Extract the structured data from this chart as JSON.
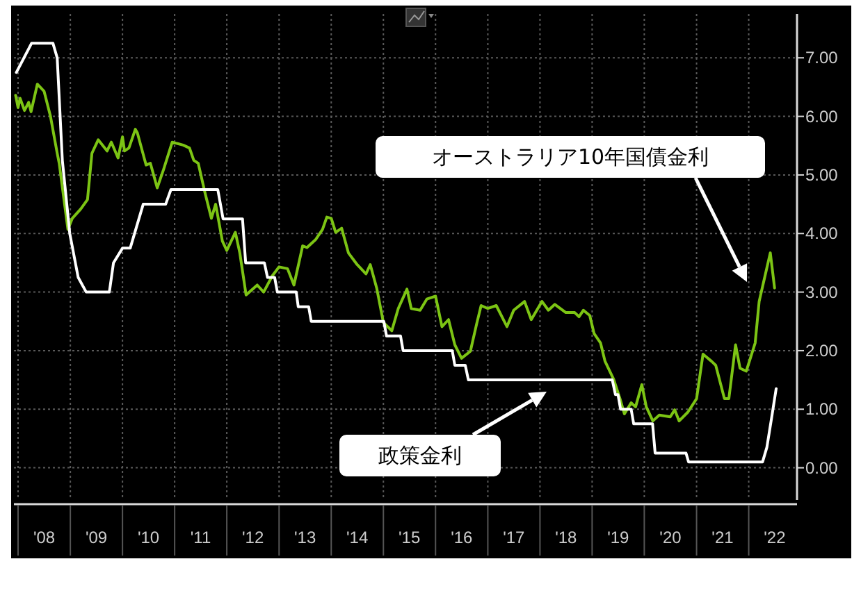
{
  "chart_data": {
    "type": "line",
    "xlim": [
      "2007-12-03",
      "2022-12-05"
    ],
    "ylim": [
      -0.55,
      7.75
    ],
    "xticks": [
      {
        "value": "2008-01-01",
        "label": null
      },
      {
        "value": "2008-07-02",
        "label": "'08"
      },
      {
        "value": "2009-01-01",
        "label": null
      },
      {
        "value": "2009-07-02",
        "label": "'09"
      },
      {
        "value": "2010-01-01",
        "label": null
      },
      {
        "value": "2010-07-02",
        "label": "'10"
      },
      {
        "value": "2011-01-01",
        "label": null
      },
      {
        "value": "2011-07-02",
        "label": "'11"
      },
      {
        "value": "2012-01-01",
        "label": null
      },
      {
        "value": "2012-07-02",
        "label": "'12"
      },
      {
        "value": "2013-01-01",
        "label": null
      },
      {
        "value": "2013-07-02",
        "label": "'13"
      },
      {
        "value": "2014-01-01",
        "label": null
      },
      {
        "value": "2014-07-02",
        "label": "'14"
      },
      {
        "value": "2015-01-01",
        "label": null
      },
      {
        "value": "2015-07-02",
        "label": "'15"
      },
      {
        "value": "2016-01-01",
        "label": null
      },
      {
        "value": "2016-07-02",
        "label": "'16"
      },
      {
        "value": "2017-01-01",
        "label": null
      },
      {
        "value": "2017-07-02",
        "label": "'17"
      },
      {
        "value": "2018-01-01",
        "label": null
      },
      {
        "value": "2018-07-02",
        "label": "'18"
      },
      {
        "value": "2019-01-01",
        "label": null
      },
      {
        "value": "2019-07-02",
        "label": "'19"
      },
      {
        "value": "2020-01-01",
        "label": null
      },
      {
        "value": "2020-07-02",
        "label": "'20"
      },
      {
        "value": "2021-01-01",
        "label": null
      },
      {
        "value": "2021-07-02",
        "label": "'21"
      },
      {
        "value": "2022-01-01",
        "label": null
      },
      {
        "value": "2022-07-02",
        "label": "'22"
      }
    ],
    "yticks": [
      {
        "value": 0,
        "label": "0.00"
      },
      {
        "value": 1,
        "label": "1.00"
      },
      {
        "value": 2,
        "label": "2.00"
      },
      {
        "value": 3,
        "label": "3.00"
      },
      {
        "value": 4,
        "label": "4.00"
      },
      {
        "value": 5,
        "label": "5.00"
      },
      {
        "value": 6,
        "label": "6.00"
      },
      {
        "value": 7,
        "label": "7.00"
      }
    ],
    "grid": true,
    "line_style": "solid",
    "marker": "none",
    "annotations": [
      "オーストラリア10年国債金利",
      "政策金利"
    ],
    "series": [
      {
        "color": "#7cc414",
        "x": [
          "2007-12-15",
          "2008-01-01",
          "2008-01-15",
          "2008-02-15",
          "2008-03-15",
          "2008-04-01",
          "2008-05-15",
          "2008-07-01",
          "2008-08-15",
          "2008-10-01",
          "2008-10-15",
          "2008-12-15",
          "2009-01-15",
          "2009-03-15",
          "2009-05-01",
          "2009-06-01",
          "2009-07-15",
          "2009-09-15",
          "2009-10-15",
          "2009-12-01",
          "2010-01-01",
          "2010-01-15",
          "2010-02-15",
          "2010-04-01",
          "2010-04-15",
          "2010-06-15",
          "2010-07-15",
          "2010-09-01",
          "2010-10-15",
          "2010-12-15",
          "2011-03-01",
          "2011-04-15",
          "2011-05-15",
          "2011-06-15",
          "2011-08-01",
          "2011-09-15",
          "2011-10-15",
          "2011-12-01",
          "2012-01-01",
          "2012-02-01",
          "2012-03-01",
          "2012-04-01",
          "2012-05-15",
          "2012-08-01",
          "2012-09-15",
          "2012-11-15",
          "2013-01-01",
          "2013-03-01",
          "2013-04-15",
          "2013-06-15",
          "2013-07-15",
          "2013-09-15",
          "2013-11-01",
          "2013-12-01",
          "2014-01-01",
          "2014-02-01",
          "2014-03-15",
          "2014-05-01",
          "2014-07-01",
          "2014-09-01",
          "2014-10-01",
          "2014-11-15",
          "2015-01-01",
          "2015-03-01",
          "2015-04-15",
          "2015-06-15",
          "2015-07-15",
          "2015-09-15",
          "2015-11-01",
          "2016-01-01",
          "2016-02-15",
          "2016-04-01",
          "2016-05-15",
          "2016-07-01",
          "2016-09-01",
          "2016-10-15",
          "2016-11-15",
          "2017-01-01",
          "2017-03-01",
          "2017-05-15",
          "2017-07-01",
          "2017-09-15",
          "2017-11-01",
          "2018-01-15",
          "2018-03-01",
          "2018-04-15",
          "2018-07-01",
          "2018-09-01",
          "2018-10-01",
          "2018-11-01",
          "2018-12-15",
          "2019-01-15",
          "2019-03-01",
          "2019-04-01",
          "2019-04-15",
          "2019-06-01",
          "2019-07-15",
          "2019-08-15",
          "2019-10-01",
          "2019-11-01",
          "2019-12-15",
          "2020-01-15",
          "2020-03-01",
          "2020-04-15",
          "2020-07-01",
          "2020-08-01",
          "2020-09-01",
          "2020-11-01",
          "2021-01-01",
          "2021-02-15",
          "2021-04-15",
          "2021-05-15",
          "2021-07-15",
          "2021-08-15",
          "2021-10-01",
          "2021-11-01",
          "2021-12-15",
          "2022-02-15",
          "2022-03-15",
          "2022-04-15",
          "2022-06-01",
          "2022-07-01"
        ],
        "values": [
          6.36,
          6.15,
          6.31,
          6.1,
          6.24,
          6.08,
          6.55,
          6.43,
          6.0,
          5.37,
          5.2,
          4.07,
          4.26,
          4.42,
          4.58,
          5.37,
          5.6,
          5.41,
          5.56,
          5.29,
          5.65,
          5.41,
          5.46,
          5.78,
          5.72,
          5.17,
          5.2,
          4.78,
          5.09,
          5.56,
          5.51,
          5.46,
          5.25,
          5.2,
          4.7,
          4.26,
          4.5,
          3.87,
          3.71,
          3.87,
          4.02,
          3.67,
          2.95,
          3.12,
          3.0,
          3.28,
          3.43,
          3.4,
          3.12,
          3.79,
          3.76,
          3.9,
          4.07,
          4.28,
          4.26,
          4.02,
          4.09,
          3.67,
          3.47,
          3.31,
          3.47,
          3.07,
          2.48,
          2.34,
          2.72,
          3.05,
          2.72,
          2.69,
          2.88,
          2.93,
          2.41,
          2.53,
          2.1,
          1.87,
          1.99,
          2.46,
          2.77,
          2.72,
          2.77,
          2.41,
          2.69,
          2.84,
          2.53,
          2.84,
          2.69,
          2.79,
          2.65,
          2.65,
          2.58,
          2.69,
          2.6,
          2.29,
          2.13,
          1.82,
          1.75,
          1.51,
          1.18,
          0.92,
          1.11,
          1.04,
          1.42,
          1.04,
          0.8,
          0.9,
          0.87,
          0.99,
          0.8,
          0.95,
          1.18,
          1.94,
          1.82,
          1.75,
          1.18,
          1.18,
          2.1,
          1.7,
          1.65,
          2.13,
          2.84,
          3.17,
          3.67,
          3.07
        ]
      },
      {
        "color": "#ffffff",
        "x": [
          "2007-12-20",
          "2008-04-05",
          "2008-09-01",
          "2008-10-01",
          "2008-11-06",
          "2008-12-28",
          "2009-02-25",
          "2009-04-22",
          "2009-10-01",
          "2009-10-30",
          "2010-01-01",
          "2010-02-24",
          "2010-05-26",
          "2010-10-30",
          "2010-12-06",
          "2011-10-30",
          "2011-12-06",
          "2012-04-20",
          "2012-05-12",
          "2012-09-20",
          "2012-10-12",
          "2012-12-01",
          "2012-12-20",
          "2013-05-01",
          "2013-05-15",
          "2013-07-27",
          "2013-08-14",
          "2015-01-04",
          "2015-01-23",
          "2015-05-01",
          "2015-05-19",
          "2016-04-27",
          "2016-05-15",
          "2016-07-27",
          "2016-08-18",
          "2019-05-22",
          "2019-06-13",
          "2019-07-01",
          "2019-07-19",
          "2019-10-01",
          "2019-10-19",
          "2020-02-28",
          "2020-03-17",
          "2020-10-19",
          "2020-11-06",
          "2022-04-08",
          "2022-05-08",
          "2022-06-10",
          "2022-07-12"
        ],
        "values": [
          6.75,
          7.25,
          7.25,
          7.0,
          5.25,
          4.0,
          3.25,
          3.0,
          3.0,
          3.5,
          3.75,
          3.75,
          4.5,
          4.5,
          4.75,
          4.75,
          4.25,
          4.25,
          3.5,
          3.5,
          3.25,
          3.25,
          3.0,
          3.0,
          2.75,
          2.75,
          2.5,
          2.5,
          2.25,
          2.25,
          2.0,
          2.0,
          1.75,
          1.75,
          1.5,
          1.5,
          1.25,
          1.25,
          1.0,
          1.0,
          0.75,
          0.75,
          0.25,
          0.25,
          0.1,
          0.1,
          0.35,
          0.85,
          1.35
        ]
      }
    ]
  }
}
